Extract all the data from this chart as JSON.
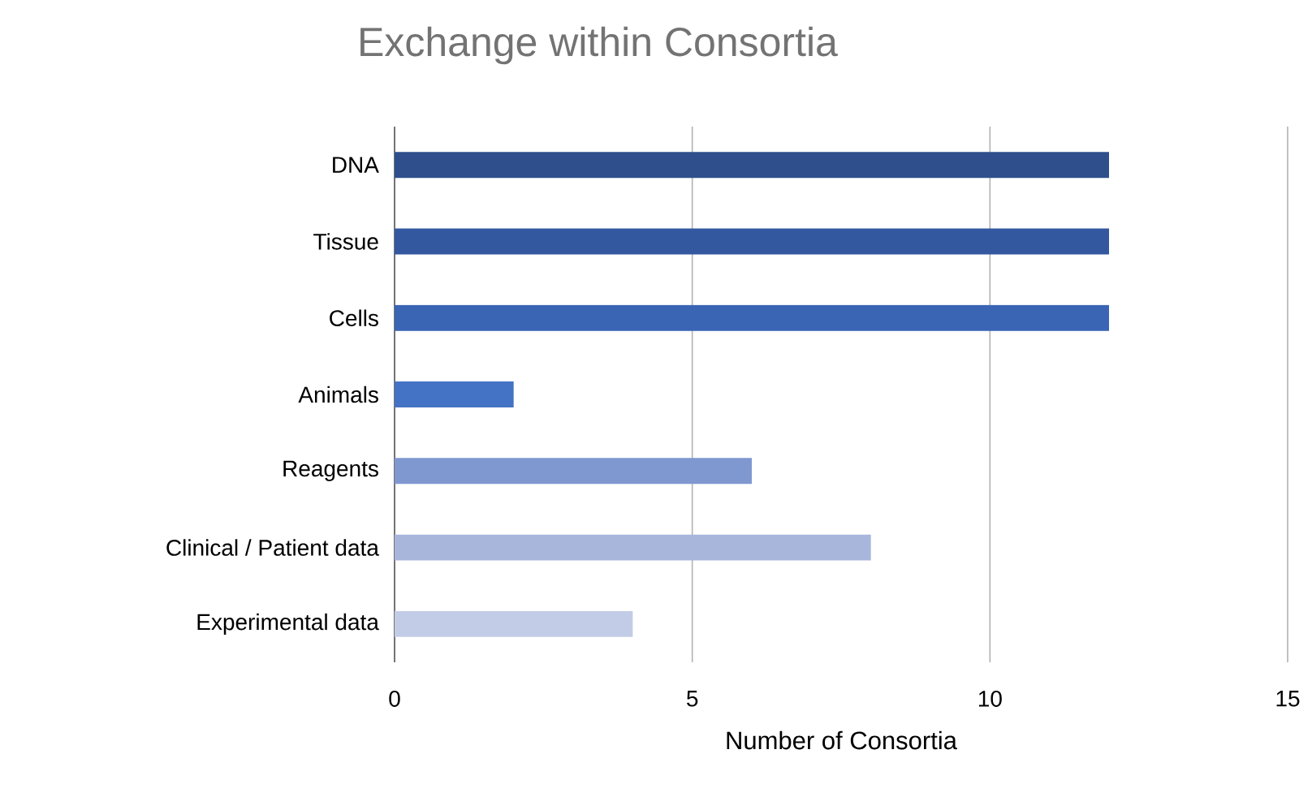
{
  "chart_data": {
    "type": "bar",
    "orientation": "horizontal",
    "title": "Exchange within Consortia",
    "xlabel": "Number of Consortia",
    "categories": [
      "DNA",
      "Tissue",
      "Cells",
      "Animals",
      "Reagents",
      "Clinical / Patient data",
      "Experimental data"
    ],
    "values": [
      12,
      12,
      12,
      2,
      6,
      8,
      4
    ],
    "colors": [
      "#2e4f8c",
      "#3358a0",
      "#3a64b4",
      "#4472c4",
      "#8098d0",
      "#a8b6dc",
      "#c2cce6"
    ],
    "xlim": [
      0,
      15
    ],
    "xticks": [
      0,
      5,
      10,
      15
    ],
    "grid": "x"
  }
}
